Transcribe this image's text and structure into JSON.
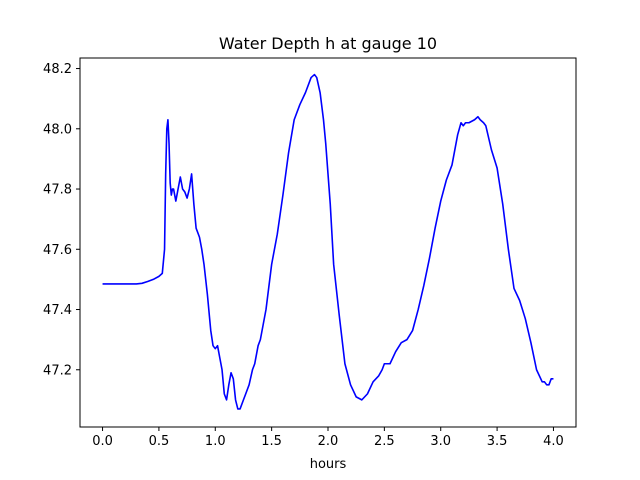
{
  "chart_data": {
    "type": "line",
    "title": "Water Depth h at gauge 10",
    "xlabel": "hours",
    "ylabel": "",
    "xlim": [
      -0.2,
      4.2
    ],
    "ylim": [
      47.01,
      48.235
    ],
    "xticks": [
      0.0,
      0.5,
      1.0,
      1.5,
      2.0,
      2.5,
      3.0,
      3.5,
      4.0
    ],
    "xtick_labels": [
      "0.0",
      "0.5",
      "1.0",
      "1.5",
      "2.0",
      "2.5",
      "3.0",
      "3.5",
      "4.0"
    ],
    "yticks": [
      47.2,
      47.4,
      47.6,
      47.8,
      48.0,
      48.2
    ],
    "ytick_labels": [
      "47.2",
      "47.4",
      "47.6",
      "47.8",
      "48.0",
      "48.2"
    ],
    "grid": false,
    "legend": "none",
    "series": [
      {
        "color": "#0000ff",
        "x": [
          0.0,
          0.1,
          0.2,
          0.3,
          0.35,
          0.4,
          0.45,
          0.5,
          0.53,
          0.55,
          0.56,
          0.57,
          0.58,
          0.59,
          0.6,
          0.61,
          0.62,
          0.63,
          0.65,
          0.67,
          0.69,
          0.71,
          0.73,
          0.75,
          0.77,
          0.79,
          0.81,
          0.83,
          0.84,
          0.86,
          0.88,
          0.9,
          0.93,
          0.96,
          0.98,
          1.0,
          1.02,
          1.04,
          1.06,
          1.08,
          1.1,
          1.12,
          1.14,
          1.16,
          1.18,
          1.2,
          1.22,
          1.25,
          1.27,
          1.3,
          1.33,
          1.35,
          1.38,
          1.4,
          1.45,
          1.5,
          1.55,
          1.6,
          1.65,
          1.7,
          1.75,
          1.8,
          1.85,
          1.88,
          1.9,
          1.93,
          1.96,
          1.98,
          2.0,
          2.02,
          2.05,
          2.1,
          2.15,
          2.2,
          2.25,
          2.3,
          2.35,
          2.4,
          2.45,
          2.48,
          2.5,
          2.55,
          2.6,
          2.65,
          2.7,
          2.75,
          2.8,
          2.85,
          2.9,
          2.95,
          3.0,
          3.05,
          3.1,
          3.15,
          3.18,
          3.2,
          3.22,
          3.25,
          3.3,
          3.33,
          3.35,
          3.38,
          3.4,
          3.45,
          3.5,
          3.55,
          3.6,
          3.65,
          3.7,
          3.75,
          3.8,
          3.85,
          3.9,
          3.92,
          3.94,
          3.96,
          3.98,
          4.0
        ],
        "y": [
          47.485,
          47.485,
          47.485,
          47.485,
          47.487,
          47.493,
          47.5,
          47.51,
          47.52,
          47.6,
          47.85,
          48.0,
          48.03,
          47.95,
          47.82,
          47.78,
          47.8,
          47.8,
          47.76,
          47.8,
          47.84,
          47.8,
          47.79,
          47.77,
          47.8,
          47.85,
          47.75,
          47.67,
          47.66,
          47.64,
          47.6,
          47.55,
          47.45,
          47.33,
          47.28,
          47.27,
          47.28,
          47.24,
          47.2,
          47.12,
          47.1,
          47.15,
          47.19,
          47.17,
          47.1,
          47.07,
          47.07,
          47.1,
          47.12,
          47.15,
          47.2,
          47.22,
          47.28,
          47.3,
          47.4,
          47.55,
          47.65,
          47.78,
          47.92,
          48.03,
          48.08,
          48.12,
          48.17,
          48.18,
          48.17,
          48.12,
          48.03,
          47.95,
          47.85,
          47.75,
          47.55,
          47.38,
          47.22,
          47.15,
          47.11,
          47.1,
          47.12,
          47.16,
          47.18,
          47.2,
          47.22,
          47.22,
          47.26,
          47.29,
          47.3,
          47.33,
          47.4,
          47.48,
          47.57,
          47.67,
          47.76,
          47.83,
          47.88,
          47.98,
          48.02,
          48.01,
          48.02,
          48.02,
          48.03,
          48.04,
          48.03,
          48.02,
          48.01,
          47.93,
          47.87,
          47.75,
          47.6,
          47.47,
          47.43,
          47.37,
          47.29,
          47.2,
          47.16,
          47.16,
          47.15,
          47.15,
          47.17,
          47.17
        ]
      }
    ]
  }
}
